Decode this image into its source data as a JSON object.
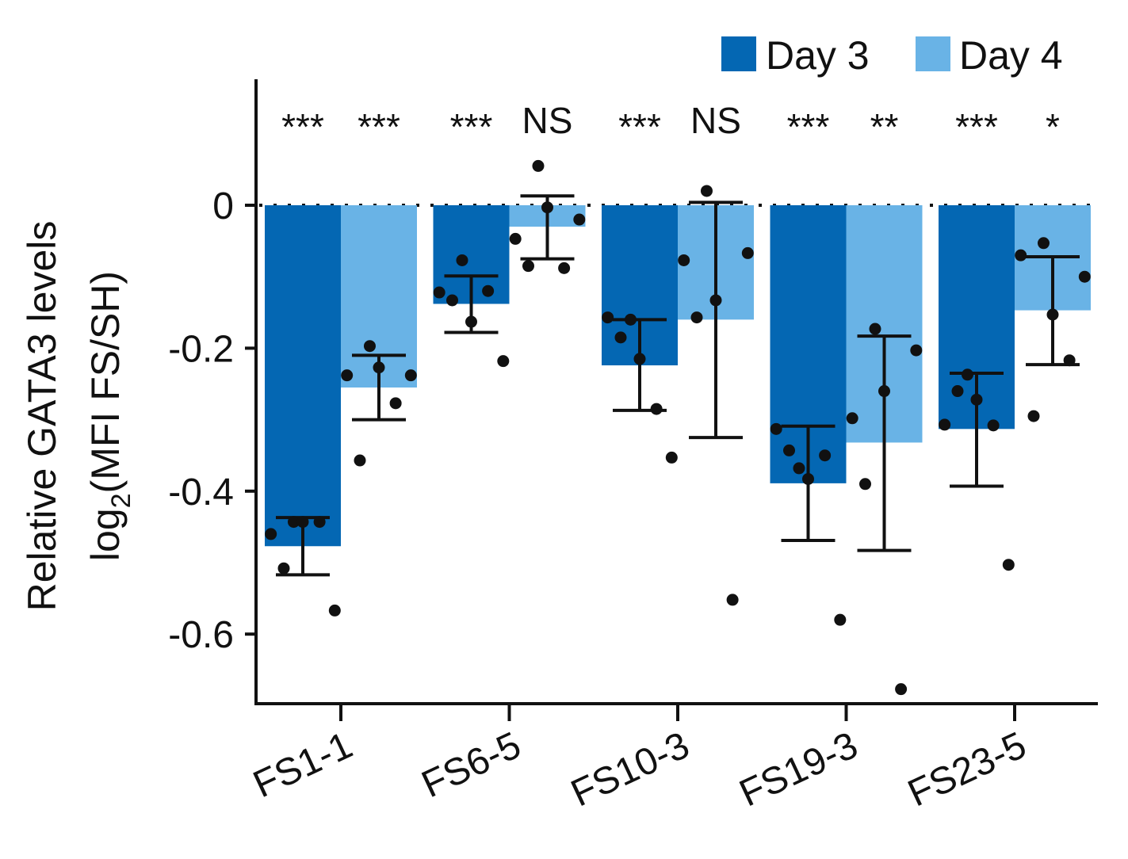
{
  "chart_data": {
    "type": "bar",
    "ylabel_line1": "Relative GATA3 levels",
    "ylabel_line2_prefix": "log",
    "ylabel_line2_subscript": "2",
    "ylabel_line2_suffix": "(MFI FS/SH)",
    "categories": [
      "FS1-1",
      "FS6-5",
      "FS10-3",
      "FS19-3",
      "FS23-5"
    ],
    "ylim": [
      -0.7,
      0.175
    ],
    "yticks": [
      0,
      -0.2,
      -0.4,
      -0.6
    ],
    "ytick_labels": [
      "0",
      "-0.2",
      "-0.4",
      "-0.6"
    ],
    "reference_line": 0,
    "legend": [
      {
        "name": "Day 3",
        "color": "#0467b3"
      },
      {
        "name": "Day 4",
        "color": "#69b3e6"
      }
    ],
    "series": [
      {
        "name": "Day 3",
        "color": "#0467b3",
        "values": [
          -0.477,
          -0.138,
          -0.224,
          -0.389,
          -0.313
        ],
        "err_low": [
          -0.517,
          -0.178,
          -0.287,
          -0.469,
          -0.393
        ],
        "err_high": [
          -0.437,
          -0.099,
          -0.16,
          -0.309,
          -0.235
        ],
        "significance": [
          "***",
          "***",
          "***",
          "***",
          "***"
        ],
        "points": [
          [
            -0.46,
            -0.508,
            -0.443,
            -0.443,
            -0.443,
            -0.567
          ],
          [
            -0.122,
            -0.133,
            -0.077,
            -0.163,
            -0.12,
            -0.218
          ],
          [
            -0.157,
            -0.185,
            -0.16,
            -0.215,
            -0.285,
            -0.353
          ],
          [
            -0.313,
            -0.343,
            -0.368,
            -0.383,
            -0.35,
            -0.58
          ],
          [
            -0.307,
            -0.26,
            -0.237,
            -0.272,
            -0.308,
            -0.503
          ]
        ]
      },
      {
        "name": "Day 4",
        "color": "#69b3e6",
        "values": [
          -0.255,
          -0.03,
          -0.16,
          -0.332,
          -0.147
        ],
        "err_low": [
          -0.3,
          -0.075,
          -0.325,
          -0.483,
          -0.223
        ],
        "err_high": [
          -0.21,
          0.013,
          0.004,
          -0.183,
          -0.072
        ],
        "significance": [
          "***",
          "NS",
          "NS",
          "**",
          "*"
        ],
        "points": [
          [
            -0.238,
            -0.357,
            -0.197,
            -0.227,
            -0.277,
            -0.238
          ],
          [
            -0.047,
            -0.085,
            0.055,
            -0.003,
            -0.088,
            -0.02
          ],
          [
            -0.077,
            -0.157,
            0.02,
            -0.133,
            -0.552,
            -0.067
          ],
          [
            -0.298,
            -0.39,
            -0.173,
            -0.26,
            -0.677,
            -0.203
          ],
          [
            -0.07,
            -0.295,
            -0.053,
            -0.153,
            -0.217,
            -0.1
          ]
        ]
      }
    ]
  }
}
